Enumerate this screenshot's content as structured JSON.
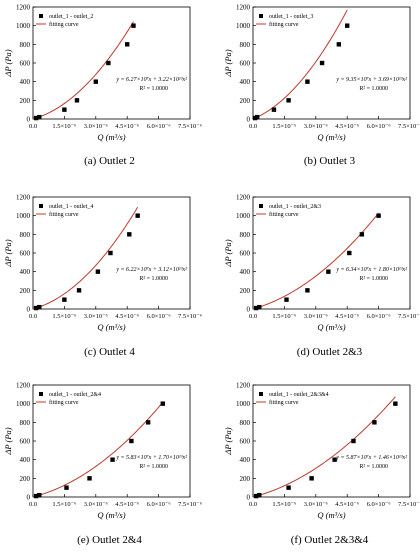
{
  "chart_data": [
    {
      "type": "scatter",
      "caption": "(a) Outlet 2",
      "xlabel": "Q (m³/s)",
      "ylabel": "ΔP (Pa)",
      "xlim": [
        0,
        7.5e-06
      ],
      "ylim": [
        0,
        1200
      ],
      "xticks": [
        "0.0",
        "1.5×10⁻⁶",
        "3.0×10⁻⁶",
        "4.5×10⁻⁶",
        "6.0×10⁻⁶",
        "7.5×10⁻⁶"
      ],
      "yticks": [
        "0",
        "200",
        "400",
        "600",
        "800",
        "1000",
        "1200"
      ],
      "legend": {
        "position": "top-left",
        "entries": [
          "outlet_1 - outlet_2",
          "fitting curve"
        ]
      },
      "equation": "y = 6.27×10⁷x + 3.22×10¹³x²",
      "r2": "R² = 1.0000",
      "a": 62700000.0,
      "b": 32200000000000.0,
      "x": [
        1.5e-07,
        3e-07,
        1.5e-06,
        2.1e-06,
        3e-06,
        3.6e-06,
        4.5e-06,
        4.8e-06
      ],
      "y": [
        10,
        20,
        100,
        200,
        400,
        600,
        800,
        1000
      ],
      "grid": false
    },
    {
      "type": "scatter",
      "caption": "(b) Outlet 3",
      "xlabel": "Q (m³/s)",
      "ylabel": "ΔP (Pa)",
      "xlim": [
        0,
        7.5e-06
      ],
      "ylim": [
        0,
        1200
      ],
      "xticks": [
        "0.0",
        "1.5×10⁻⁶",
        "3.0×10⁻⁶",
        "4.5×10⁻⁶",
        "6.0×10⁻⁶",
        "7.5×10⁻⁶"
      ],
      "yticks": [
        "0",
        "200",
        "400",
        "600",
        "800",
        "1000",
        "1200"
      ],
      "legend": {
        "position": "top-left",
        "entries": [
          "outlet_1 - outlet_3",
          "fitting curve"
        ]
      },
      "equation": "y = 9.35×10⁷x + 3.69×10¹³x²",
      "r2": "R² = 1.0000",
      "a": 93500000.0,
      "b": 36900000000000.0,
      "x": [
        1e-07,
        2e-07,
        1e-06,
        1.7e-06,
        2.6e-06,
        3.3e-06,
        4.1e-06,
        4.5e-06
      ],
      "y": [
        10,
        20,
        100,
        200,
        400,
        600,
        800,
        1000
      ],
      "grid": false
    },
    {
      "type": "scatter",
      "caption": "(c) Outlet 4",
      "xlabel": "Q (m³/s)",
      "ylabel": "ΔP (Pa)",
      "xlim": [
        0,
        7.5e-06
      ],
      "ylim": [
        0,
        1200
      ],
      "xticks": [
        "0.0",
        "1.5×10⁻⁶",
        "3.0×10⁻⁶",
        "4.5×10⁻⁶",
        "6.0×10⁻⁶",
        "7.5×10⁻⁶"
      ],
      "yticks": [
        "0",
        "200",
        "400",
        "600",
        "800",
        "1000",
        "1200"
      ],
      "legend": {
        "position": "top-left",
        "entries": [
          "outlet_1 - outlet_4",
          "fitting curve"
        ]
      },
      "equation": "y = 6.22×10⁷x + 3.12×10¹³x²",
      "r2": "R² = 1.0000",
      "a": 62200000.0,
      "b": 31200000000000.0,
      "x": [
        1.5e-07,
        3e-07,
        1.5e-06,
        2.2e-06,
        3.1e-06,
        3.7e-06,
        4.6e-06,
        5e-06
      ],
      "y": [
        10,
        20,
        100,
        200,
        400,
        600,
        800,
        1000
      ],
      "grid": false
    },
    {
      "type": "scatter",
      "caption": "(d) Outlet 2&3",
      "xlabel": "Q (m³/s)",
      "ylabel": "ΔP (Pa)",
      "xlim": [
        0,
        7.5e-06
      ],
      "ylim": [
        0,
        1200
      ],
      "xticks": [
        "0.0",
        "1.5×10⁻⁶",
        "3.0×10⁻⁶",
        "4.5×10⁻⁶",
        "6.0×10⁻⁶",
        "7.5×10⁻⁶"
      ],
      "yticks": [
        "0",
        "200",
        "400",
        "600",
        "800",
        "1000",
        "1200"
      ],
      "legend": {
        "position": "top-left",
        "entries": [
          "outlet_1 - outlet_2&3",
          "fitting curve"
        ]
      },
      "equation": "y = 6.34×10⁷x + 1.80×10¹³x²",
      "r2": "R² = 1.0000",
      "a": 63400000.0,
      "b": 18000000000000.0,
      "x": [
        1.5e-07,
        3e-07,
        1.6e-06,
        2.6e-06,
        3.6e-06,
        4.6e-06,
        5.2e-06,
        6e-06
      ],
      "y": [
        10,
        20,
        100,
        200,
        400,
        600,
        800,
        1000
      ],
      "grid": false
    },
    {
      "type": "scatter",
      "caption": "(e) Outlet 2&4",
      "xlabel": "Q (m³/s)",
      "ylabel": "ΔP (Pa)",
      "xlim": [
        0,
        7.5e-06
      ],
      "ylim": [
        0,
        1200
      ],
      "xticks": [
        "0.0",
        "1.5×10⁻⁶",
        "3.0×10⁻⁶",
        "4.5×10⁻⁶",
        "6.0×10⁻⁶",
        "7.5×10⁻⁶"
      ],
      "yticks": [
        "0",
        "200",
        "400",
        "600",
        "800",
        "1000",
        "1200"
      ],
      "legend": {
        "position": "top-left",
        "entries": [
          "outlet_1 - outlet_2&4",
          "fitting curve"
        ]
      },
      "equation": "y = 5.83×10⁷x + 1.70×10¹³x²",
      "r2": "R² = 1.0000",
      "a": 58300000.0,
      "b": 17000000000000.0,
      "x": [
        1.5e-07,
        3e-07,
        1.6e-06,
        2.7e-06,
        3.8e-06,
        4.7e-06,
        5.5e-06,
        6.2e-06
      ],
      "y": [
        10,
        20,
        100,
        200,
        400,
        600,
        800,
        1000
      ],
      "grid": false
    },
    {
      "type": "scatter",
      "caption": "(f) Outlet 2&3&4",
      "xlabel": "Q (m³/s)",
      "ylabel": "ΔP (Pa)",
      "xlim": [
        0,
        7.5e-06
      ],
      "ylim": [
        0,
        1200
      ],
      "xticks": [
        "0.0",
        "1.5×10⁻⁶",
        "3.0×10⁻⁶",
        "4.5×10⁻⁶",
        "6.0×10⁻⁶",
        "7.5×10⁻⁶"
      ],
      "yticks": [
        "0",
        "200",
        "400",
        "600",
        "800",
        "1000",
        "1200"
      ],
      "legend": {
        "position": "top-left",
        "entries": [
          "outlet_1 - outlet_2&3&4",
          "fitting curve"
        ]
      },
      "equation": "y = 5.87×10⁷x + 1.46×10¹³x²",
      "r2": "R² = 1.0000",
      "a": 58700000.0,
      "b": 14600000000000.0,
      "x": [
        1.5e-07,
        3e-07,
        1.7e-06,
        2.8e-06,
        3.9e-06,
        4.8e-06,
        5.8e-06,
        6.8e-06
      ],
      "y": [
        10,
        20,
        100,
        200,
        400,
        600,
        800,
        1000
      ],
      "grid": false
    }
  ],
  "colors": {
    "marker": "#000000",
    "curve": "#c0392b",
    "axis": "#000000"
  }
}
